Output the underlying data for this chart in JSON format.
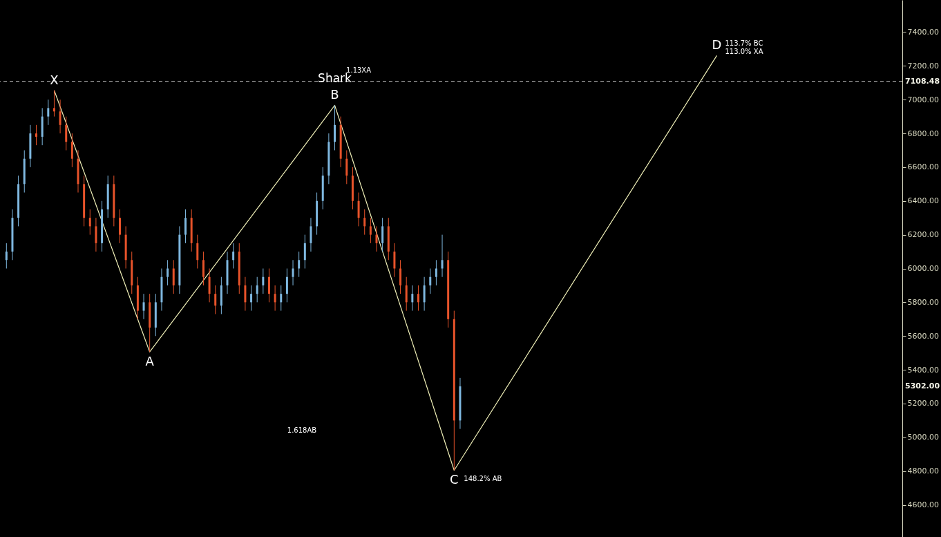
{
  "chart_data": {
    "type": "candlestick",
    "categories": [
      null,
      null,
      null,
      null,
      null,
      null,
      null,
      null,
      null,
      null,
      null,
      null,
      null,
      null,
      null,
      null,
      null,
      null,
      null,
      null,
      null,
      null,
      null,
      null,
      null,
      null,
      null,
      null,
      null,
      null,
      null,
      null,
      null,
      null,
      null,
      null,
      null,
      null,
      null,
      null,
      null,
      null,
      null,
      null,
      null,
      null,
      null,
      null,
      null,
      null,
      null,
      null,
      null,
      null,
      null,
      null,
      null,
      null,
      null,
      null,
      null,
      null,
      null,
      null,
      null,
      null,
      null,
      null,
      null,
      null,
      null,
      null,
      null,
      null,
      null,
      null,
      null,
      null,
      null,
      null,
      null,
      null,
      null,
      null,
      null,
      null,
      null,
      null,
      null,
      null,
      null,
      null,
      null,
      null,
      null,
      null,
      null,
      null,
      null,
      null,
      null,
      null,
      null,
      null,
      null,
      null,
      null,
      null,
      null,
      null,
      null,
      null,
      null,
      null,
      null,
      null,
      null,
      null,
      null,
      null,
      null,
      null,
      null,
      null,
      null,
      null,
      null,
      null,
      null,
      null,
      null,
      null,
      null,
      null,
      null,
      null,
      null,
      null,
      null,
      null,
      null,
      null,
      null,
      null,
      null,
      null,
      null,
      null,
      null,
      null
    ],
    "ohlc": [
      [
        6050,
        6150,
        6000,
        6100
      ],
      [
        6100,
        6350,
        6050,
        6300
      ],
      [
        6300,
        6550,
        6250,
        6500
      ],
      [
        6500,
        6700,
        6450,
        6650
      ],
      [
        6650,
        6850,
        6600,
        6800
      ],
      [
        6800,
        6850,
        6730,
        6780
      ],
      [
        6780,
        6950,
        6730,
        6900
      ],
      [
        6900,
        7000,
        6850,
        6950
      ],
      [
        6950,
        7055,
        6900,
        6930
      ],
      [
        6930,
        7000,
        6800,
        6850
      ],
      [
        6850,
        6900,
        6700,
        6750
      ],
      [
        6750,
        6800,
        6600,
        6650
      ],
      [
        6650,
        6700,
        6450,
        6500
      ],
      [
        6500,
        6550,
        6250,
        6300
      ],
      [
        6300,
        6350,
        6200,
        6250
      ],
      [
        6250,
        6300,
        6100,
        6150
      ],
      [
        6150,
        6400,
        6100,
        6350
      ],
      [
        6350,
        6550,
        6300,
        6500
      ],
      [
        6500,
        6550,
        6250,
        6300
      ],
      [
        6300,
        6350,
        6150,
        6200
      ],
      [
        6200,
        6250,
        6000,
        6050
      ],
      [
        6050,
        6100,
        5850,
        5900
      ],
      [
        5900,
        5950,
        5700,
        5750
      ],
      [
        5750,
        5850,
        5700,
        5800
      ],
      [
        5800,
        5850,
        5506,
        5650
      ],
      [
        5650,
        5850,
        5600,
        5800
      ],
      [
        5800,
        6000,
        5750,
        5950
      ],
      [
        5950,
        6050,
        5900,
        6000
      ],
      [
        6000,
        6050,
        5850,
        5900
      ],
      [
        5900,
        6250,
        5850,
        6200
      ],
      [
        6200,
        6350,
        6150,
        6300
      ],
      [
        6300,
        6350,
        6100,
        6150
      ],
      [
        6150,
        6200,
        6000,
        6050
      ],
      [
        6050,
        6100,
        5900,
        5950
      ],
      [
        5950,
        6000,
        5800,
        5850
      ],
      [
        5850,
        5900,
        5730,
        5780
      ],
      [
        5780,
        5950,
        5730,
        5900
      ],
      [
        5900,
        6100,
        5850,
        6050
      ],
      [
        6050,
        6150,
        6000,
        6100
      ],
      [
        6100,
        6150,
        5850,
        5900
      ],
      [
        5900,
        5950,
        5750,
        5800
      ],
      [
        5800,
        5900,
        5750,
        5850
      ],
      [
        5850,
        5950,
        5800,
        5900
      ],
      [
        5900,
        6000,
        5850,
        5950
      ],
      [
        5950,
        6000,
        5800,
        5850
      ],
      [
        5850,
        5900,
        5750,
        5800
      ],
      [
        5800,
        5900,
        5750,
        5850
      ],
      [
        5850,
        6000,
        5800,
        5950
      ],
      [
        5950,
        6050,
        5900,
        6000
      ],
      [
        6000,
        6100,
        5950,
        6050
      ],
      [
        6050,
        6200,
        6000,
        6150
      ],
      [
        6150,
        6300,
        6100,
        6250
      ],
      [
        6250,
        6450,
        6200,
        6400
      ],
      [
        6400,
        6600,
        6350,
        6550
      ],
      [
        6550,
        6800,
        6500,
        6750
      ],
      [
        6750,
        6966,
        6700,
        6850
      ],
      [
        6850,
        6900,
        6600,
        6650
      ],
      [
        6650,
        6700,
        6500,
        6550
      ],
      [
        6550,
        6600,
        6350,
        6400
      ],
      [
        6400,
        6450,
        6250,
        6300
      ],
      [
        6300,
        6350,
        6200,
        6250
      ],
      [
        6250,
        6300,
        6150,
        6200
      ],
      [
        6200,
        6250,
        6100,
        6150
      ],
      [
        6150,
        6300,
        6100,
        6250
      ],
      [
        6250,
        6300,
        6050,
        6100
      ],
      [
        6100,
        6150,
        5950,
        6000
      ],
      [
        6000,
        6050,
        5850,
        5900
      ],
      [
        5900,
        5950,
        5750,
        5800
      ],
      [
        5800,
        5900,
        5750,
        5850
      ],
      [
        5850,
        5900,
        5750,
        5800
      ],
      [
        5800,
        5950,
        5750,
        5900
      ],
      [
        5900,
        6000,
        5850,
        5950
      ],
      [
        5950,
        6050,
        5900,
        6000
      ],
      [
        6000,
        6200,
        5950,
        6050
      ],
      [
        6050,
        6100,
        5650,
        5700
      ],
      [
        5700,
        5750,
        4805,
        5100
      ],
      [
        5100,
        5352,
        5050,
        5302
      ],
      null,
      null,
      null,
      null,
      null,
      null,
      null,
      null,
      null,
      null,
      null,
      null,
      null,
      null,
      null,
      null,
      null,
      null,
      null,
      null,
      null,
      null,
      null,
      null,
      null,
      null,
      null,
      null,
      null,
      null,
      null,
      null,
      null,
      null,
      null,
      null,
      null,
      null,
      null,
      null,
      null,
      null,
      null,
      null,
      null,
      null,
      null,
      null,
      null,
      null,
      null,
      null,
      null,
      null,
      null,
      null,
      null,
      null,
      null,
      null,
      null,
      null,
      null,
      null,
      null,
      null,
      null,
      null,
      null,
      null,
      null,
      null,
      null
    ],
    "colors": [
      "#7fb8e0",
      "#7fb8e0",
      "#7fb8e0",
      "#7fb8e0",
      "#7fb8e0",
      "#e8532a",
      "#7fb8e0",
      "#7fb8e0",
      "#e8532a",
      "#e8532a",
      "#e8532a",
      "#e8532a",
      "#e8532a",
      "#e8532a",
      "#e8532a",
      "#e8532a",
      "#7fb8e0",
      "#7fb8e0",
      "#e8532a",
      "#e8532a",
      "#e8532a",
      "#e8532a",
      "#e8532a",
      "#7fb8e0",
      "#e8532a",
      "#7fb8e0",
      "#7fb8e0",
      "#7fb8e0",
      "#e8532a",
      "#7fb8e0",
      "#7fb8e0",
      "#e8532a",
      "#e8532a",
      "#e8532a",
      "#e8532a",
      "#e8532a",
      "#7fb8e0",
      "#7fb8e0",
      "#7fb8e0",
      "#e8532a",
      "#e8532a",
      "#7fb8e0",
      "#7fb8e0",
      "#7fb8e0",
      "#e8532a",
      "#e8532a",
      "#7fb8e0",
      "#7fb8e0",
      "#7fb8e0",
      "#7fb8e0",
      "#7fb8e0",
      "#7fb8e0",
      "#7fb8e0",
      "#7fb8e0",
      "#7fb8e0",
      "#7fb8e0",
      "#e8532a",
      "#e8532a",
      "#e8532a",
      "#e8532a",
      "#e8532a",
      "#e8532a",
      "#e8532a",
      "#7fb8e0",
      "#e8532a",
      "#e8532a",
      "#e8532a",
      "#e8532a",
      "#7fb8e0",
      "#e8532a",
      "#7fb8e0",
      "#7fb8e0",
      "#7fb8e0",
      "#7fb8e0",
      "#e8532a",
      "#e8532a",
      "#7fb8e0",
      null,
      null,
      null,
      null,
      null,
      null,
      null,
      null,
      null,
      null,
      null,
      null,
      null,
      null,
      null,
      null,
      null,
      null,
      null,
      null,
      null,
      null,
      null,
      null,
      null,
      null,
      null,
      null,
      null,
      null,
      null,
      null,
      null,
      null,
      null,
      null,
      null,
      null,
      null,
      null,
      null,
      null,
      null,
      null,
      null,
      null,
      null,
      null,
      null,
      null,
      null,
      null,
      null,
      null,
      null,
      null,
      null,
      null,
      null,
      null,
      null,
      null,
      null,
      null,
      null,
      null,
      null,
      null,
      null,
      null,
      null,
      null,
      null
    ],
    "series": [
      {
        "type": "line",
        "color": "#f0f0b8",
        "values": [
          null,
          null,
          null,
          null,
          null,
          null,
          null,
          null,
          7055,
          null,
          null,
          null,
          null,
          null,
          null,
          null,
          null,
          null,
          null,
          null,
          null,
          null,
          null,
          null,
          5506,
          null,
          null,
          null,
          null,
          null,
          null,
          null,
          null,
          null,
          null,
          null,
          null,
          null,
          null,
          null,
          null,
          null,
          null,
          null,
          null,
          null,
          null,
          null,
          null,
          null,
          null,
          null,
          null,
          null,
          null,
          6966,
          null,
          null,
          null,
          null,
          null,
          null,
          null,
          null,
          null,
          null,
          null,
          null,
          null,
          null,
          null,
          null,
          null,
          null,
          null,
          4805,
          null,
          null,
          null,
          null,
          null,
          null,
          null,
          null,
          null,
          null,
          null,
          null,
          null,
          null,
          null,
          null,
          null,
          null,
          null,
          null,
          null,
          null,
          null,
          null,
          null,
          null,
          null,
          null,
          null,
          null,
          null,
          null,
          null,
          null,
          null,
          null,
          null,
          null,
          null,
          null,
          null,
          null,
          null,
          7261,
          null,
          null,
          null,
          null,
          null,
          null,
          null,
          null,
          null,
          null,
          null,
          null,
          null,
          null,
          null,
          null,
          null,
          null,
          null,
          null,
          null,
          null,
          null,
          null,
          null,
          null,
          null,
          null,
          null,
          null
        ],
        "value_labels": [
          null,
          null,
          null,
          null,
          null,
          null,
          null,
          null,
          "X",
          null,
          null,
          null,
          null,
          null,
          null,
          null,
          null,
          null,
          null,
          null,
          null,
          null,
          null,
          null,
          "A",
          null,
          null,
          null,
          null,
          null,
          null,
          null,
          null,
          null,
          null,
          null,
          null,
          null,
          null,
          null,
          null,
          null,
          null,
          null,
          null,
          null,
          null,
          null,
          null,
          null,
          null,
          null,
          null,
          null,
          null,
          "B",
          null,
          null,
          null,
          null,
          null,
          null,
          null,
          null,
          null,
          null,
          null,
          null,
          null,
          null,
          null,
          null,
          null,
          null,
          null,
          "C",
          null,
          null,
          null,
          null,
          null,
          null,
          null,
          null,
          null,
          null,
          null,
          null,
          null,
          null,
          null,
          null,
          null,
          null,
          null,
          null,
          null,
          null,
          null,
          null,
          null,
          null,
          null,
          null,
          null,
          null,
          null,
          null,
          null,
          null,
          null,
          null,
          null,
          null,
          null,
          null,
          null,
          null,
          null,
          "D",
          null,
          null,
          null,
          null,
          null,
          null,
          null,
          null,
          null,
          null,
          null,
          null,
          null,
          null,
          null,
          null,
          null,
          null,
          null,
          null,
          null,
          null,
          null,
          null,
          null,
          null,
          null,
          null,
          null,
          null
        ]
      }
    ],
    "ylim": [
      4410,
      7590
    ],
    "yticks": [
      {
        "value": 4600,
        "label": "4600.00"
      },
      {
        "value": 4800,
        "label": "4800.00"
      },
      {
        "value": 5000,
        "label": "5000.00"
      },
      {
        "value": 5200,
        "label": "5200.00"
      },
      {
        "value": 5400,
        "label": "5400.00"
      },
      {
        "value": 5600,
        "label": "5600.00"
      },
      {
        "value": 5800,
        "label": "5800.00"
      },
      {
        "value": 6000,
        "label": "6000.00"
      },
      {
        "value": 6200,
        "label": "6200.00"
      },
      {
        "value": 6400,
        "label": "6400.00"
      },
      {
        "value": 6600,
        "label": "6600.00"
      },
      {
        "value": 6800,
        "label": "6800.00"
      },
      {
        "value": 7000,
        "label": "7000.00"
      },
      {
        "value": 7200,
        "label": "7200.00"
      },
      {
        "value": 7400,
        "label": "7400.00"
      }
    ],
    "ref_lines": [
      {
        "axis": "y",
        "value": 7108.48,
        "label": "7108.48",
        "color": "#c8c8c8",
        "line_style": "dashed"
      }
    ],
    "annotations": [
      "Shark",
      "1.13XA",
      "1.618AB",
      "148.2% AB",
      "113.7% BC",
      "113.0% XA",
      "5302.00"
    ],
    "tick_labels": "y"
  }
}
